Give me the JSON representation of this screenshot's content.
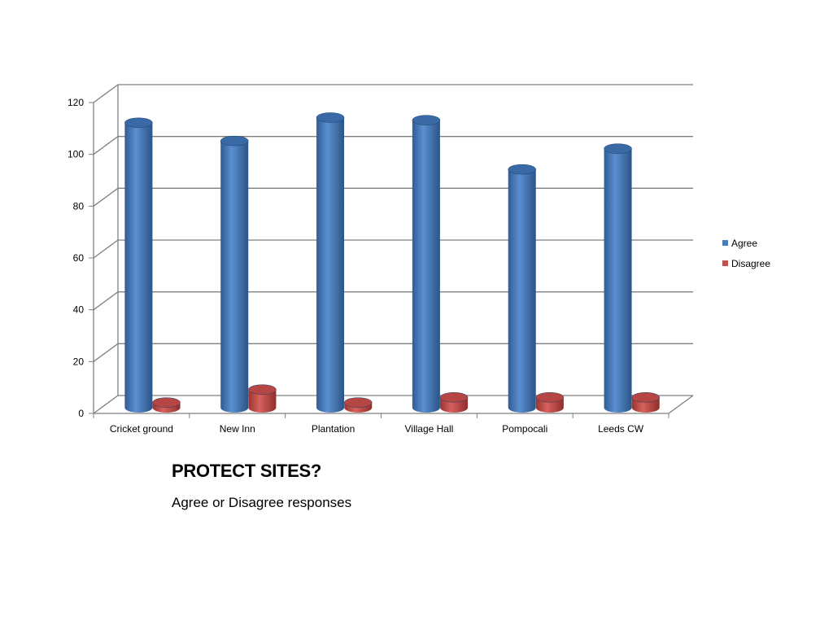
{
  "slide": {
    "title": "PROTECT SITES?",
    "subtitle": "Agree or Disagree responses"
  },
  "chart_data": {
    "type": "bar",
    "style": "3d-cylinder",
    "categories": [
      "Cricket ground",
      "New Inn",
      "Plantation",
      "Village Hall",
      "Pompocali",
      "Leeds CW"
    ],
    "series": [
      {
        "name": "Agree",
        "values": [
          110,
          103,
          112,
          111,
          92,
          100
        ],
        "color": "#4a7ebb"
      },
      {
        "name": "Disagree",
        "values": [
          2,
          7,
          2,
          4,
          4,
          4
        ],
        "color": "#c0504d"
      }
    ],
    "ylim": [
      0,
      120
    ],
    "yticks": [
      0,
      20,
      40,
      60,
      80,
      100,
      120
    ],
    "grid": true,
    "legend_position": "right",
    "xlabel": "",
    "ylabel": ""
  }
}
